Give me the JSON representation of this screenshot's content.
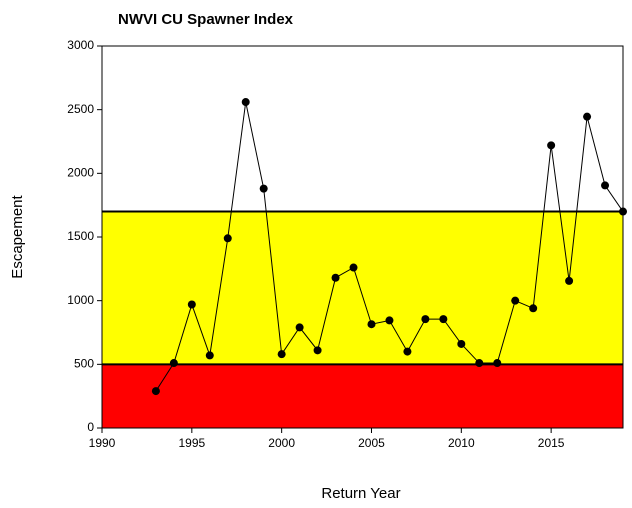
{
  "chart_data": {
    "type": "line",
    "title": "NWVI CU Spawner Index",
    "x_label": "Return Year",
    "y_label": "Escapement",
    "x": [
      1993,
      1994,
      1995,
      1996,
      1997,
      1998,
      1999,
      2000,
      2001,
      2002,
      2003,
      2004,
      2005,
      2006,
      2007,
      2008,
      2009,
      2010,
      2011,
      2012,
      2013,
      2014,
      2015,
      2016,
      2017,
      2018,
      2019
    ],
    "values": [
      290,
      510,
      970,
      570,
      1490,
      2560,
      1880,
      580,
      790,
      610,
      1180,
      1260,
      815,
      845,
      600,
      855,
      855,
      660,
      510,
      510,
      1000,
      940,
      2220,
      1155,
      2445,
      1905,
      1700
    ],
    "color": "#000000",
    "xlim": [
      1990,
      2019
    ],
    "xticks": [
      1990,
      1995,
      2000,
      2005,
      2010,
      2015
    ],
    "ylim": [
      0,
      3000
    ],
    "yticks": [
      0,
      500,
      1000,
      1500,
      2000,
      2500,
      3000
    ],
    "bands": [
      {
        "from": 0,
        "to": 500,
        "color": "#ff0000"
      },
      {
        "from": 500,
        "to": 1700,
        "color": "#ffff00"
      }
    ]
  }
}
